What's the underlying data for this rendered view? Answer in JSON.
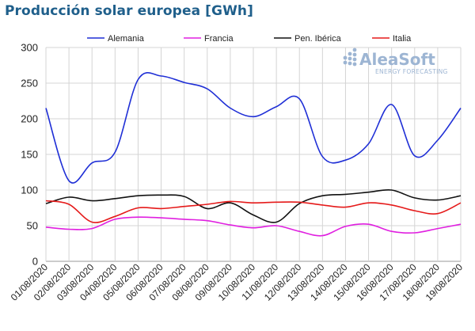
{
  "chart_title": "Producción solar europea [GWh]",
  "brand": {
    "name": "AleaSoft",
    "tagline": "ENERGY FORECASTING",
    "color": "#9db5d3"
  },
  "chart_data": {
    "type": "line",
    "title": "Producción solar europea [GWh]",
    "xlabel": "",
    "ylabel": "",
    "ylim": [
      0,
      300
    ],
    "yticks": [
      0,
      50,
      100,
      150,
      200,
      250,
      300
    ],
    "grid": true,
    "legend_position": "top",
    "categories": [
      "01/08/2020",
      "02/08/2020",
      "03/08/2020",
      "04/08/2020",
      "05/08/2020",
      "06/08/2020",
      "07/08/2020",
      "08/08/2020",
      "09/08/2020",
      "10/08/2020",
      "11/08/2020",
      "12/08/2020",
      "13/08/2020",
      "14/08/2020",
      "15/08/2020",
      "16/08/2020",
      "17/08/2020",
      "18/08/2020",
      "19/08/2020"
    ],
    "series": [
      {
        "name": "Alemania",
        "color": "#1f2fd6",
        "values": [
          215,
          113,
          138,
          153,
          255,
          260,
          251,
          242,
          215,
          203,
          217,
          228,
          147,
          142,
          165,
          220,
          148,
          170,
          215
        ]
      },
      {
        "name": "Francia",
        "color": "#e020e0",
        "values": [
          48,
          45,
          46,
          59,
          62,
          61,
          59,
          57,
          51,
          47,
          50,
          42,
          36,
          49,
          52,
          42,
          40,
          46,
          52
        ]
      },
      {
        "name": "Pen. Ibérica",
        "color": "#111111",
        "values": [
          81,
          90,
          85,
          88,
          92,
          93,
          91,
          74,
          82,
          65,
          55,
          81,
          92,
          94,
          97,
          100,
          89,
          86,
          92
        ]
      },
      {
        "name": "Italia",
        "color": "#e51a1a",
        "values": [
          85,
          80,
          55,
          63,
          75,
          74,
          77,
          80,
          84,
          82,
          83,
          83,
          79,
          76,
          82,
          79,
          71,
          67,
          82
        ]
      }
    ]
  }
}
